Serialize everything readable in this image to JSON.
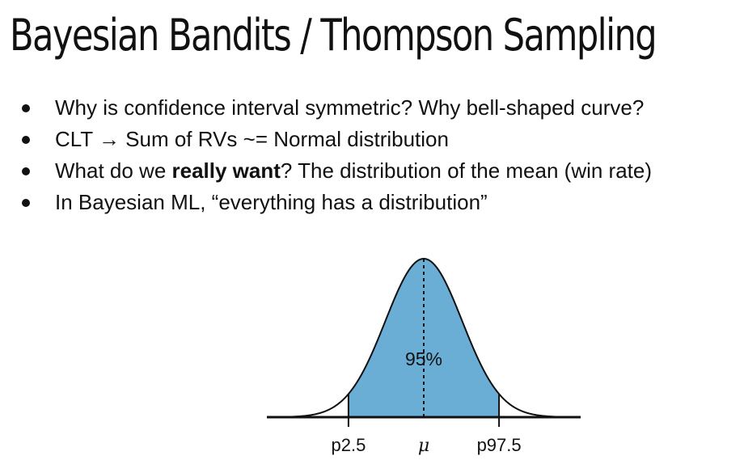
{
  "slide": {
    "title": "Bayesian Bandits / Thompson Sampling"
  },
  "bullets": [
    {
      "text": "Why is confidence interval symmetric? Why bell-shaped curve?"
    },
    {
      "text": "CLT → Sum of RVs ~= Normal distribution"
    },
    {
      "pre": "What do we ",
      "bold": "really want",
      "post": "? The distribution of the mean (win rate)"
    },
    {
      "text": "In Bayesian ML, “everything has a distribution”"
    }
  ],
  "chart_data": {
    "type": "area",
    "distribution": "normal",
    "title": "",
    "xlabel": "",
    "ylabel": "",
    "mean": 0,
    "sd": 1,
    "x_range": [
      -3.75,
      3.75
    ],
    "shaded_interval": [
      -1.96,
      1.96
    ],
    "shaded_label": "95%",
    "markers": [
      {
        "x": -1.96,
        "label": "p2.5",
        "style": "solid"
      },
      {
        "x": 0,
        "label": "μ",
        "style": "dashed"
      },
      {
        "x": 1.96,
        "label": "p97.5",
        "style": "solid"
      }
    ],
    "fill_color": "#6aaed6",
    "line_color": "#111111",
    "grid": false
  }
}
